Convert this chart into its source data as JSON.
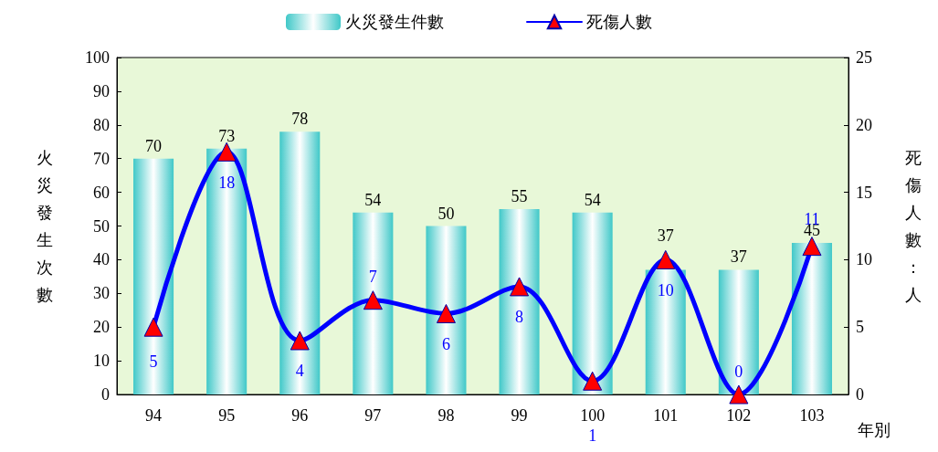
{
  "chart_data": {
    "type": "bar",
    "categories": [
      "94",
      "95",
      "96",
      "97",
      "98",
      "99",
      "100",
      "101",
      "102",
      "103"
    ],
    "series": [
      {
        "name": "火災發生件數",
        "color": "#40c8c8",
        "values": [
          70,
          73,
          78,
          54,
          50,
          55,
          54,
          37,
          37,
          45
        ]
      },
      {
        "name": "死傷人數",
        "type": "line",
        "axis": "y2",
        "color": "#0000ff",
        "values": [
          5,
          18,
          4,
          7,
          6,
          8,
          1,
          10,
          0,
          11
        ]
      }
    ],
    "xlabel": "年別",
    "ylabel": "火災發生次數",
    "y2label": "死傷人數：人",
    "ylim": [
      0,
      100
    ],
    "yticks": [
      0,
      10,
      20,
      30,
      40,
      50,
      60,
      70,
      80,
      90,
      100
    ],
    "y2lim": [
      0,
      25
    ],
    "y2ticks": [
      0,
      5,
      10,
      15,
      20,
      25
    ],
    "data_labels": true,
    "legend": "top",
    "grid": false,
    "marker": "triangle",
    "line_style": "solid"
  }
}
